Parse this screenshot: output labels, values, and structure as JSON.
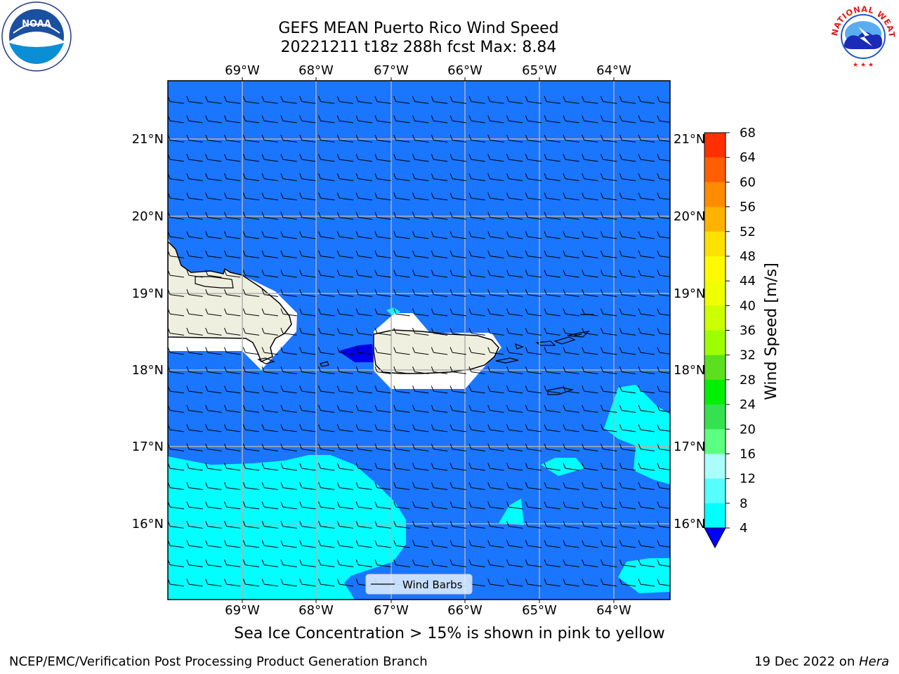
{
  "title": {
    "line1": "GEFS MEAN Puerto Rico Wind Speed",
    "line2": "20221211 t18z 288h fcst   Max: 8.84"
  },
  "map": {
    "lon_labels": [
      "69°W",
      "68°W",
      "67°W",
      "66°W",
      "65°W",
      "64°W"
    ],
    "lat_labels": [
      "21°N",
      "20°N",
      "19°N",
      "18°N",
      "17°N",
      "16°N"
    ],
    "legend_label": "Wind Barbs",
    "colors": {
      "ocean": "#1a75ff",
      "land": "#efefe0",
      "cyan": "#00ffff",
      "dark_blue": "#0000e6"
    }
  },
  "colorbar": {
    "label": "Wind Speed [m/s]",
    "ticks": [
      "68",
      "64",
      "60",
      "56",
      "52",
      "48",
      "44",
      "40",
      "36",
      "32",
      "28",
      "24",
      "20",
      "16",
      "12",
      "8",
      "4"
    ],
    "colors": [
      "#ff0000",
      "#ff2f00",
      "#ff5e00",
      "#ff8c00",
      "#ffb300",
      "#ffe000",
      "#fffa00",
      "#eeff00",
      "#ccff00",
      "#9eff00",
      "#5cdf1f",
      "#00f000",
      "#33e24e",
      "#5cff7f",
      "#aafffb",
      "#55ffff",
      "#00ffff",
      "#1a75ff"
    ],
    "extend_color": "#0000ff"
  },
  "caption": "Sea Ice Concentration > 15% is shown in pink to yellow",
  "footer": {
    "left": "NCEP/EMC/Verification Post Processing Product Generation Branch",
    "right_prefix": "19 Dec 2022 on ",
    "right_italic": "Hera"
  },
  "logos": {
    "noaa": "NOAA",
    "nws": "NATIONAL WEATHER SERVICE"
  }
}
